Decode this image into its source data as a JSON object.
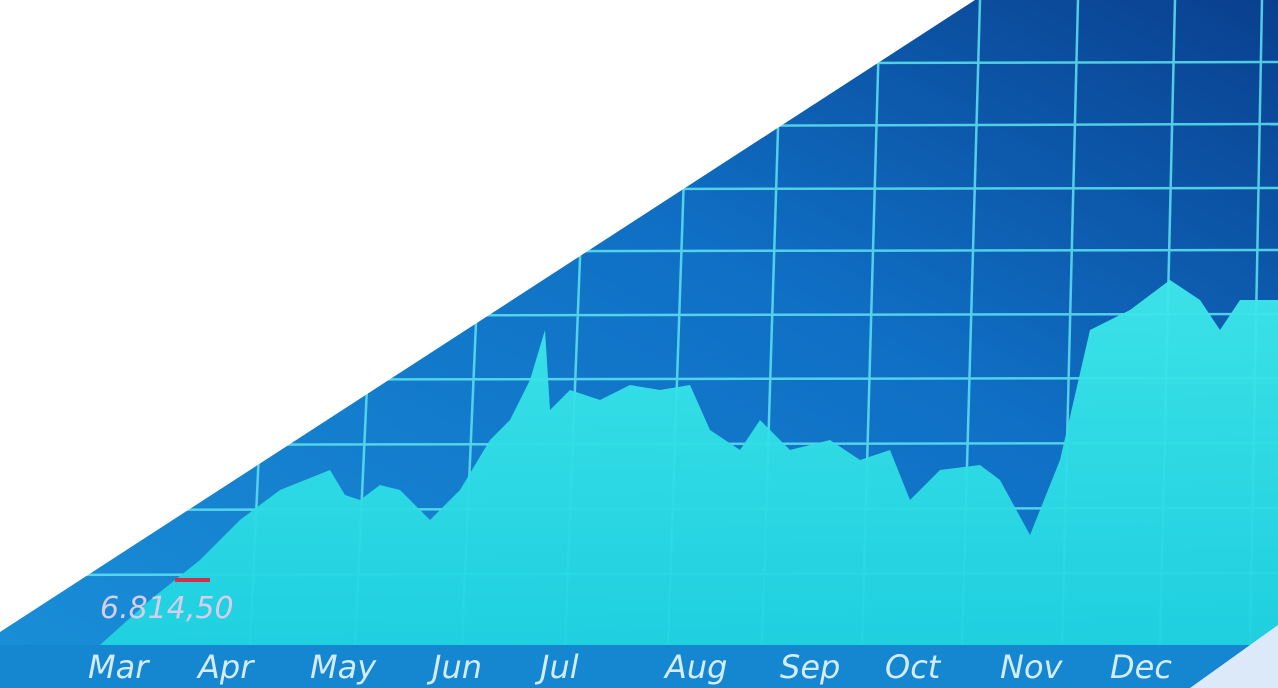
{
  "axis_labels": [
    "Mar",
    "Apr",
    "May",
    "Jun",
    "Jul",
    "Aug",
    "Sep",
    "Oct",
    "Nov",
    "Dec"
  ],
  "price_label": "6.814,50"
}
